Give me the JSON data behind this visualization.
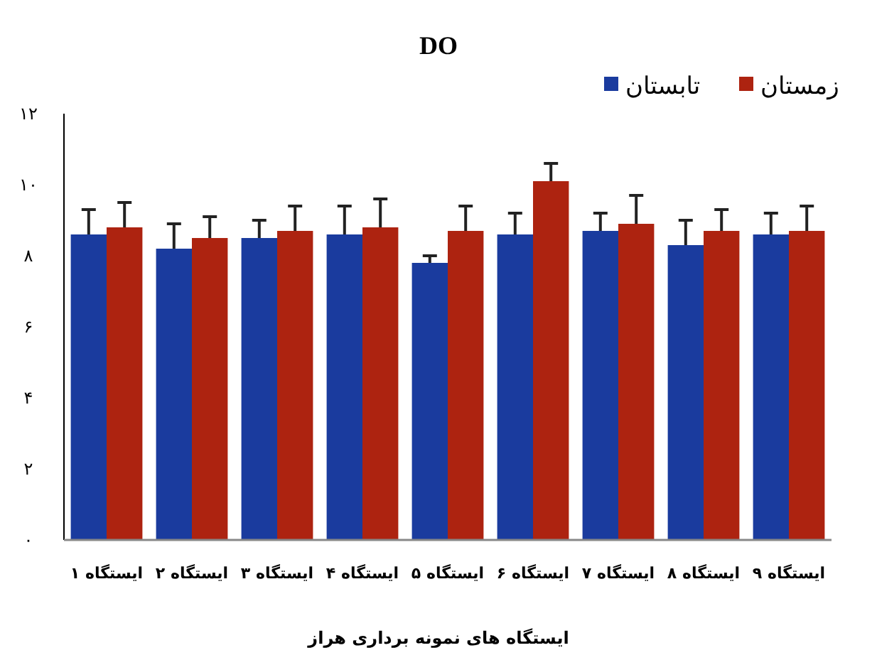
{
  "chart_data": {
    "type": "bar",
    "title": "DO",
    "xlabel": "ایستگاه های نمونه برداری هراز",
    "categories": [
      "ایستگاه ۱",
      "ایستگاه ۲",
      "ایستگاه ۳",
      "ایستگاه ۴",
      "ایستگاه ۵",
      "ایستگاه ۶",
      "ایستگاه ۷",
      "ایستگاه ۸",
      "ایستگاه ۹"
    ],
    "series": [
      {
        "name": "تابستان",
        "color": "#1a3b9e",
        "values": [
          8.6,
          8.2,
          8.5,
          8.6,
          7.8,
          8.6,
          8.7,
          8.3,
          8.6
        ],
        "errors": [
          [
            8.6,
            9.3
          ],
          [
            8.2,
            8.9
          ],
          [
            8.5,
            9.0
          ],
          [
            8.6,
            9.4
          ],
          [
            7.8,
            8.0
          ],
          [
            8.6,
            9.2
          ],
          [
            8.7,
            9.2
          ],
          [
            8.3,
            9.0
          ],
          [
            8.6,
            9.2
          ]
        ]
      },
      {
        "name": "زمستان",
        "color": "#ad2310",
        "values": [
          8.8,
          8.5,
          8.7,
          8.8,
          8.7,
          10.1,
          8.9,
          8.7,
          8.7
        ],
        "errors": [
          [
            8.8,
            9.5
          ],
          [
            8.5,
            9.1
          ],
          [
            8.7,
            9.4
          ],
          [
            8.8,
            9.6
          ],
          [
            8.7,
            9.4
          ],
          [
            10.1,
            10.6
          ],
          [
            8.9,
            9.7
          ],
          [
            8.7,
            9.3
          ],
          [
            8.7,
            9.4
          ]
        ]
      }
    ],
    "ylim": [
      0,
      12
    ],
    "yticks": [
      {
        "value": 0,
        "label": "۰"
      },
      {
        "value": 2,
        "label": "۲"
      },
      {
        "value": 4,
        "label": "۴"
      },
      {
        "value": 6,
        "label": "۶"
      },
      {
        "value": 8,
        "label": "۸"
      },
      {
        "value": 10,
        "label": "۱۰"
      },
      {
        "value": 12,
        "label": "۱۲"
      }
    ],
    "grid": false,
    "legend": "top right"
  }
}
